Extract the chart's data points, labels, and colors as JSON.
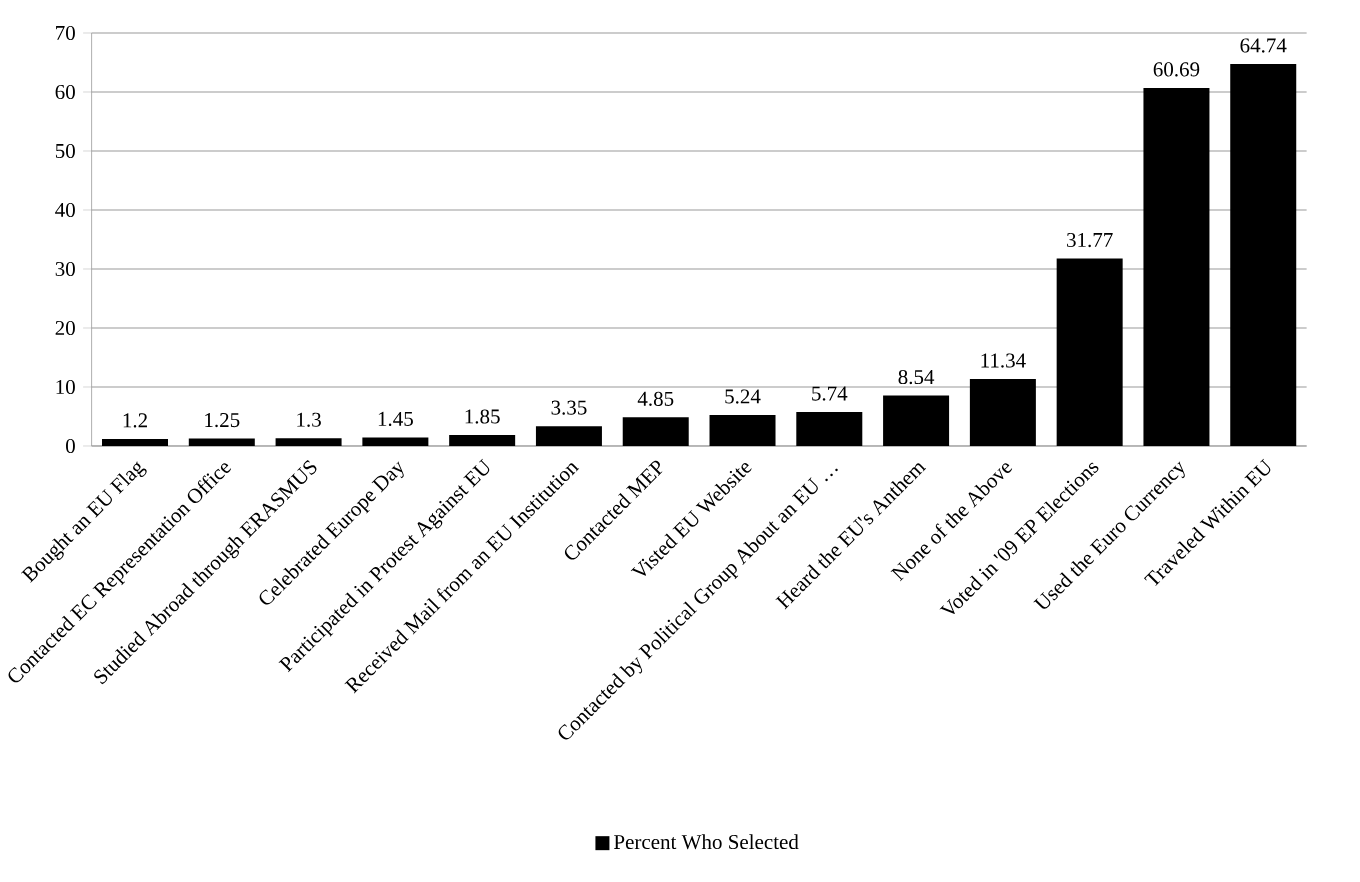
{
  "chart_data": {
    "type": "bar",
    "categories": [
      "Bought an EU Flag",
      "Contacted EC Representation Office",
      "Studied Abroad through ERASMUS",
      "Celebrated Europe Day",
      "Participated in Protest Against EU",
      "Received Mail from an EU Institution",
      "Contacted MEP",
      "Visted EU Website",
      "Contacted by Political Group About an EU …",
      "Heard the EU's Anthem",
      "None of the Above",
      "Voted in '09 EP Elections",
      "Used the Euro Currency",
      "Traveled Within EU"
    ],
    "series": [
      {
        "name": "Percent Who Selected",
        "color": "#000000",
        "values": [
          1.2,
          1.25,
          1.3,
          1.45,
          1.85,
          3.35,
          4.85,
          5.24,
          5.74,
          8.54,
          11.34,
          31.77,
          60.69,
          64.74
        ]
      }
    ],
    "ylim": [
      0,
      70
    ],
    "yticks": [
      0,
      10,
      20,
      30,
      40,
      50,
      60,
      70
    ],
    "grid": "y",
    "legend": "bottom",
    "data_labels": true
  }
}
